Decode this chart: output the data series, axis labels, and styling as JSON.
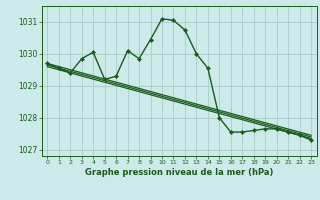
{
  "bg_color": "#cceaea",
  "grid_color": "#aacccc",
  "line_color": "#1a5c1a",
  "title": "Graphe pression niveau de la mer (hPa)",
  "ylim": [
    1026.8,
    1031.5
  ],
  "xlim": [
    -0.5,
    23.5
  ],
  "yticks": [
    1027,
    1028,
    1029,
    1030,
    1031
  ],
  "xticks": [
    0,
    1,
    2,
    3,
    4,
    5,
    6,
    7,
    8,
    9,
    10,
    11,
    12,
    13,
    14,
    15,
    16,
    17,
    18,
    19,
    20,
    21,
    22,
    23
  ],
  "main_series": {
    "x": [
      0,
      1,
      2,
      3,
      4,
      5,
      6,
      7,
      8,
      9,
      10,
      11,
      12,
      13,
      14,
      15,
      16,
      17,
      18,
      19,
      20,
      21,
      22,
      23
    ],
    "y": [
      1029.7,
      1029.55,
      1029.4,
      1029.85,
      1030.05,
      1029.2,
      1029.3,
      1030.1,
      1029.85,
      1030.45,
      1031.1,
      1031.05,
      1030.75,
      1030.0,
      1029.55,
      1028.0,
      1027.55,
      1027.55,
      1027.6,
      1027.65,
      1027.65,
      1027.55,
      1027.45,
      1027.3
    ]
  },
  "smooth_lines": [
    {
      "x": [
        0,
        23
      ],
      "y": [
        1029.7,
        1027.45
      ]
    },
    {
      "x": [
        0,
        23
      ],
      "y": [
        1029.65,
        1027.4
      ]
    },
    {
      "x": [
        0,
        23
      ],
      "y": [
        1029.6,
        1027.35
      ]
    }
  ]
}
